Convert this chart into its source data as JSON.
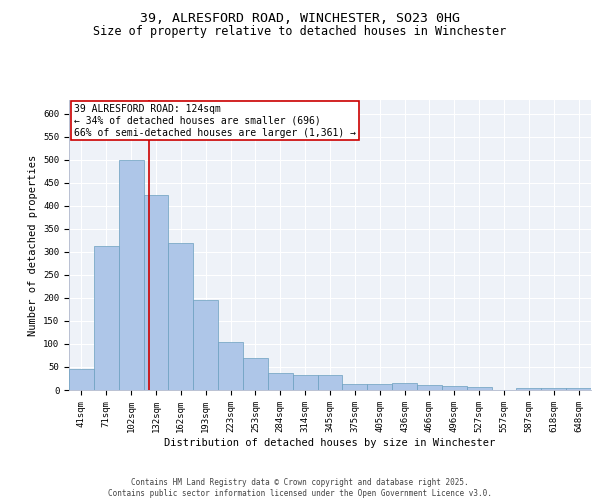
{
  "title_line1": "39, ALRESFORD ROAD, WINCHESTER, SO23 0HG",
  "title_line2": "Size of property relative to detached houses in Winchester",
  "xlabel": "Distribution of detached houses by size in Winchester",
  "ylabel": "Number of detached properties",
  "categories": [
    "41sqm",
    "71sqm",
    "102sqm",
    "132sqm",
    "162sqm",
    "193sqm",
    "223sqm",
    "253sqm",
    "284sqm",
    "314sqm",
    "345sqm",
    "375sqm",
    "405sqm",
    "436sqm",
    "466sqm",
    "496sqm",
    "527sqm",
    "557sqm",
    "587sqm",
    "618sqm",
    "648sqm"
  ],
  "values": [
    45,
    313,
    500,
    424,
    320,
    195,
    105,
    70,
    38,
    33,
    32,
    14,
    13,
    15,
    10,
    8,
    6,
    0,
    5,
    5,
    4
  ],
  "bar_color": "#aec6e8",
  "bar_edge_color": "#6a9fbf",
  "bar_width": 1.0,
  "vline_color": "#cc0000",
  "annotation_text": "39 ALRESFORD ROAD: 124sqm\n← 34% of detached houses are smaller (696)\n66% of semi-detached houses are larger (1,361) →",
  "annotation_box_color": "#cc0000",
  "ylim": [
    0,
    630
  ],
  "yticks": [
    0,
    50,
    100,
    150,
    200,
    250,
    300,
    350,
    400,
    450,
    500,
    550,
    600
  ],
  "background_color": "#eef2f8",
  "grid_color": "#ffffff",
  "footer_text": "Contains HM Land Registry data © Crown copyright and database right 2025.\nContains public sector information licensed under the Open Government Licence v3.0.",
  "title_fontsize": 9.5,
  "subtitle_fontsize": 8.5,
  "axis_label_fontsize": 7.5,
  "tick_fontsize": 6.5,
  "annotation_fontsize": 7.0,
  "footer_fontsize": 5.5
}
